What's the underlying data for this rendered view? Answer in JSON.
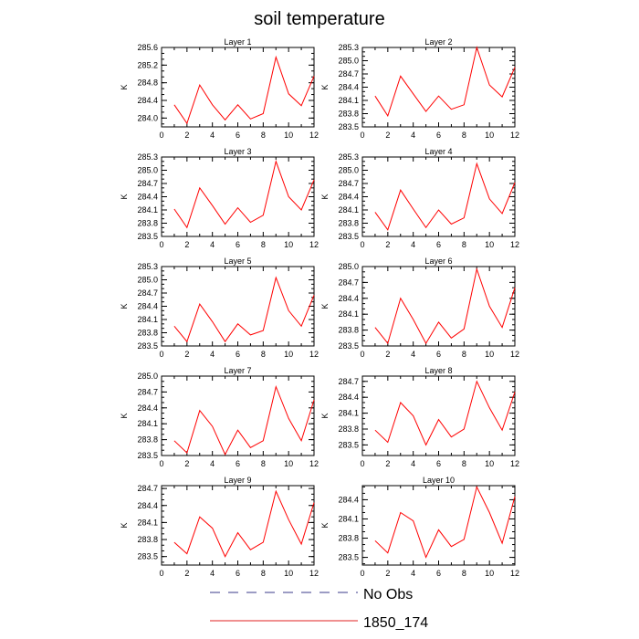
{
  "title": "soil temperature",
  "legend": {
    "placement": "bottom-center",
    "entries": [
      {
        "label": "No Obs",
        "style": "dashed",
        "color": "#3a3a8a"
      },
      {
        "label": "1850_174",
        "style": "solid",
        "color": "#e02020"
      }
    ]
  },
  "colors": {
    "series": "#ff0000",
    "axis": "#000000"
  },
  "chart_data": [
    {
      "type": "line",
      "title": "Layer 1",
      "ylabel": "K",
      "x": [
        1,
        2,
        3,
        4,
        5,
        6,
        7,
        8,
        9,
        10,
        11,
        12
      ],
      "xlim": [
        0,
        12
      ],
      "xticks": [
        0,
        2,
        4,
        6,
        8,
        10,
        12
      ],
      "ylim": [
        283.8,
        285.6
      ],
      "yticks": [
        "284.0",
        "284.4",
        "284.8",
        "285.2",
        "285.6"
      ],
      "series": [
        {
          "values": [
            284.3,
            283.88,
            284.75,
            284.3,
            283.96,
            284.3,
            283.98,
            284.1,
            285.38,
            284.55,
            284.28,
            284.95
          ]
        }
      ]
    },
    {
      "type": "line",
      "title": "Layer 2",
      "ylabel": "K",
      "x": [
        1,
        2,
        3,
        4,
        5,
        6,
        7,
        8,
        9,
        10,
        11,
        12
      ],
      "xlim": [
        0,
        12
      ],
      "xticks": [
        0,
        2,
        4,
        6,
        8,
        10,
        12
      ],
      "ylim": [
        283.5,
        285.3
      ],
      "yticks": [
        "283.5",
        "283.8",
        "284.1",
        "284.4",
        "284.7",
        "285.0",
        "285.3"
      ],
      "series": [
        {
          "values": [
            284.2,
            283.75,
            284.65,
            284.25,
            283.85,
            284.2,
            283.9,
            284.0,
            285.3,
            284.45,
            284.18,
            284.85
          ]
        }
      ]
    },
    {
      "type": "line",
      "title": "Layer 3",
      "ylabel": "K",
      "x": [
        1,
        2,
        3,
        4,
        5,
        6,
        7,
        8,
        9,
        10,
        11,
        12
      ],
      "xlim": [
        0,
        12
      ],
      "xticks": [
        0,
        2,
        4,
        6,
        8,
        10,
        12
      ],
      "ylim": [
        283.5,
        285.3
      ],
      "yticks": [
        "283.5",
        "283.8",
        "284.1",
        "284.4",
        "284.7",
        "285.0",
        "285.3"
      ],
      "series": [
        {
          "values": [
            284.12,
            283.7,
            284.6,
            284.2,
            283.78,
            284.15,
            283.82,
            283.98,
            285.2,
            284.4,
            284.1,
            284.78
          ]
        }
      ]
    },
    {
      "type": "line",
      "title": "Layer 4",
      "ylabel": "K",
      "x": [
        1,
        2,
        3,
        4,
        5,
        6,
        7,
        8,
        9,
        10,
        11,
        12
      ],
      "xlim": [
        0,
        12
      ],
      "xticks": [
        0,
        2,
        4,
        6,
        8,
        10,
        12
      ],
      "ylim": [
        283.5,
        285.3
      ],
      "yticks": [
        "283.5",
        "283.8",
        "284.1",
        "284.4",
        "284.7",
        "285.0",
        "285.3"
      ],
      "series": [
        {
          "values": [
            284.05,
            283.65,
            284.55,
            284.12,
            283.7,
            284.1,
            283.78,
            283.92,
            285.15,
            284.35,
            284.02,
            284.72
          ]
        }
      ]
    },
    {
      "type": "line",
      "title": "Layer 5",
      "ylabel": "K",
      "x": [
        1,
        2,
        3,
        4,
        5,
        6,
        7,
        8,
        9,
        10,
        11,
        12
      ],
      "xlim": [
        0,
        12
      ],
      "xticks": [
        0,
        2,
        4,
        6,
        8,
        10,
        12
      ],
      "ylim": [
        283.5,
        285.3
      ],
      "yticks": [
        "283.5",
        "283.8",
        "284.1",
        "284.4",
        "284.7",
        "285.0",
        "285.3"
      ],
      "series": [
        {
          "values": [
            283.95,
            283.6,
            284.45,
            284.05,
            283.6,
            284.0,
            283.75,
            283.85,
            285.05,
            284.3,
            283.95,
            284.65
          ]
        }
      ]
    },
    {
      "type": "line",
      "title": "Layer 6",
      "ylabel": "K",
      "x": [
        1,
        2,
        3,
        4,
        5,
        6,
        7,
        8,
        9,
        10,
        11,
        12
      ],
      "xlim": [
        0,
        12
      ],
      "xticks": [
        0,
        2,
        4,
        6,
        8,
        10,
        12
      ],
      "ylim": [
        283.5,
        285.0
      ],
      "yticks": [
        "283.5",
        "283.8",
        "284.1",
        "284.4",
        "284.7",
        "285.0"
      ],
      "series": [
        {
          "values": [
            283.85,
            283.55,
            284.4,
            284.0,
            283.55,
            283.95,
            283.65,
            283.82,
            284.95,
            284.25,
            283.85,
            284.6
          ]
        }
      ]
    },
    {
      "type": "line",
      "title": "Layer 7",
      "ylabel": "K",
      "x": [
        1,
        2,
        3,
        4,
        5,
        6,
        7,
        8,
        9,
        10,
        11,
        12
      ],
      "xlim": [
        0,
        12
      ],
      "xticks": [
        0,
        2,
        4,
        6,
        8,
        10,
        12
      ],
      "ylim": [
        283.5,
        285.0
      ],
      "yticks": [
        "283.5",
        "283.8",
        "284.1",
        "284.4",
        "284.7",
        "285.0"
      ],
      "series": [
        {
          "values": [
            283.78,
            283.55,
            284.35,
            284.05,
            283.52,
            283.98,
            283.65,
            283.78,
            284.8,
            284.2,
            283.78,
            284.55
          ]
        }
      ]
    },
    {
      "type": "line",
      "title": "Layer 8",
      "ylabel": "K",
      "x": [
        1,
        2,
        3,
        4,
        5,
        6,
        7,
        8,
        9,
        10,
        11,
        12
      ],
      "xlim": [
        0,
        12
      ],
      "xticks": [
        0,
        2,
        4,
        6,
        8,
        10,
        12
      ],
      "ylim": [
        283.3,
        284.8
      ],
      "yticks": [
        "283.5",
        "283.8",
        "284.1",
        "284.4",
        "284.7"
      ],
      "series": [
        {
          "values": [
            283.78,
            283.55,
            284.3,
            284.05,
            283.5,
            283.98,
            283.65,
            283.8,
            284.7,
            284.2,
            283.78,
            284.5
          ]
        }
      ]
    },
    {
      "type": "line",
      "title": "Layer 9",
      "ylabel": "K",
      "x": [
        1,
        2,
        3,
        4,
        5,
        6,
        7,
        8,
        9,
        10,
        11,
        12
      ],
      "xlim": [
        0,
        12
      ],
      "xticks": [
        0,
        2,
        4,
        6,
        8,
        10,
        12
      ],
      "ylim": [
        283.35,
        284.75
      ],
      "yticks": [
        "283.5",
        "283.8",
        "284.1",
        "284.4",
        "284.7"
      ],
      "series": [
        {
          "values": [
            283.75,
            283.55,
            284.2,
            284.0,
            283.5,
            283.92,
            283.62,
            283.75,
            284.65,
            284.15,
            283.72,
            284.45
          ]
        }
      ]
    },
    {
      "type": "line",
      "title": "Layer 10",
      "ylabel": "K",
      "x": [
        1,
        2,
        3,
        4,
        5,
        6,
        7,
        8,
        9,
        10,
        11,
        12
      ],
      "xlim": [
        0,
        12
      ],
      "xticks": [
        0,
        2,
        4,
        6,
        8,
        10,
        12
      ],
      "ylim": [
        283.38,
        284.62
      ],
      "yticks": [
        "283.5",
        "283.8",
        "284.1",
        "284.4"
      ],
      "series": [
        {
          "values": [
            283.76,
            283.57,
            284.2,
            284.07,
            283.5,
            283.93,
            283.67,
            283.78,
            284.6,
            284.2,
            283.72,
            284.45
          ]
        }
      ]
    }
  ]
}
